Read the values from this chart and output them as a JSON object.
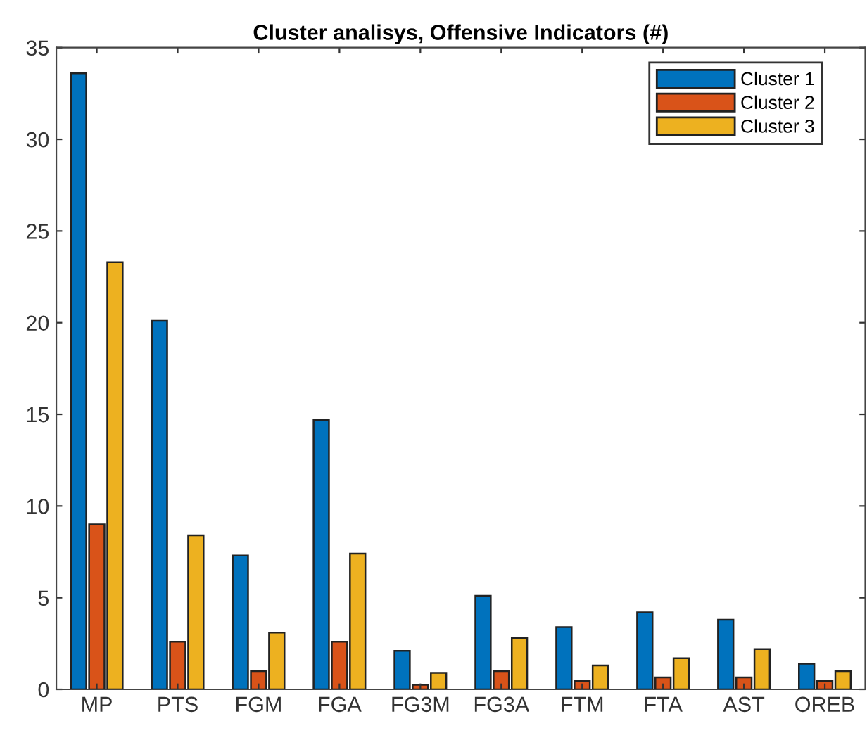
{
  "chart_data": {
    "type": "bar",
    "title": "Cluster analisys, Offensive Indicators (#)",
    "categories": [
      "MP",
      "PTS",
      "FGM",
      "FGA",
      "FG3M",
      "FG3A",
      "FTM",
      "FTA",
      "AST",
      "OREB"
    ],
    "series": [
      {
        "name": "Cluster 1",
        "color": "#0072bd",
        "values": [
          33.6,
          20.1,
          7.3,
          14.7,
          2.1,
          5.1,
          3.4,
          4.2,
          3.8,
          1.4
        ]
      },
      {
        "name": "Cluster 2",
        "color": "#d95319",
        "values": [
          9.0,
          2.6,
          1.0,
          2.6,
          0.25,
          1.0,
          0.45,
          0.65,
          0.65,
          0.45
        ]
      },
      {
        "name": "Cluster 3",
        "color": "#edb120",
        "values": [
          23.3,
          8.4,
          3.1,
          7.4,
          0.9,
          2.8,
          1.3,
          1.7,
          2.2,
          1.0
        ]
      }
    ],
    "ylim": [
      0,
      35
    ],
    "yticks": [
      0,
      5,
      10,
      15,
      20,
      25,
      30,
      35
    ],
    "grid": false,
    "legend": "top right"
  }
}
